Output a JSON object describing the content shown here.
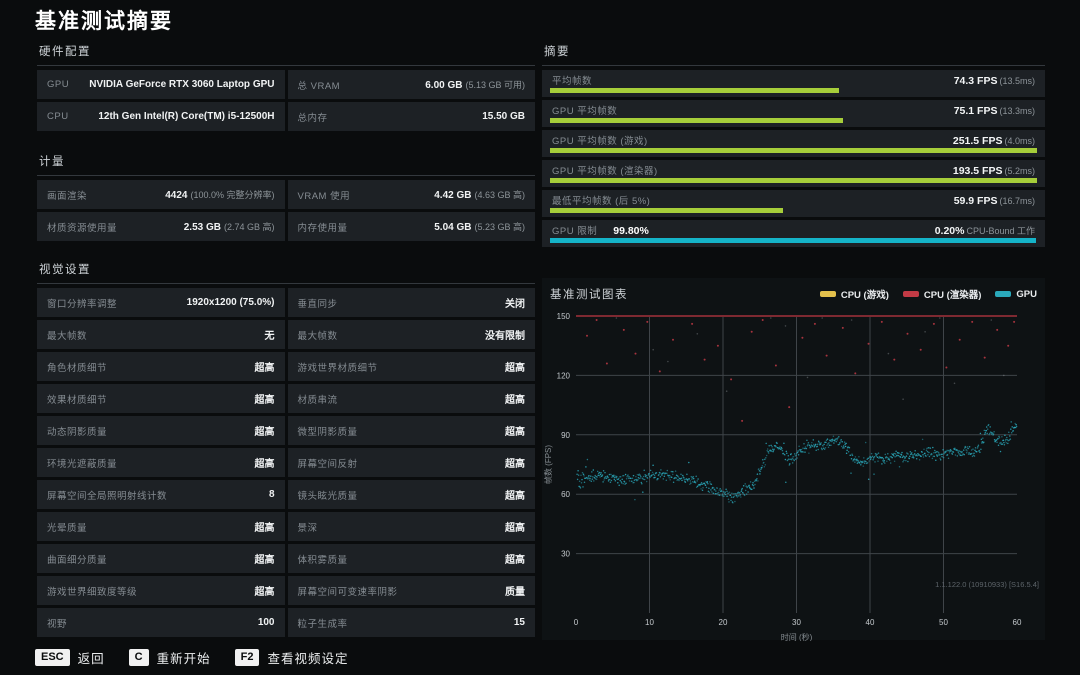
{
  "page": {
    "title": "基准测试摘要"
  },
  "hardware": {
    "header": "硬件配置",
    "rows": [
      [
        {
          "label": "GPU",
          "value": "NVIDIA GeForce RTX 3060 Laptop GPU",
          "note": ""
        },
        {
          "label": "总 VRAM",
          "value": "6.00 GB",
          "note": "(5.13 GB 可用)"
        }
      ],
      [
        {
          "label": "CPU",
          "value": "12th Gen Intel(R) Core(TM) i5-12500H",
          "note": ""
        },
        {
          "label": "总内存",
          "value": "15.50 GB",
          "note": ""
        }
      ]
    ]
  },
  "metrics": {
    "header": "计量",
    "rows": [
      [
        {
          "label": "画面渲染",
          "value": "4424",
          "note": "(100.0% 完整分辨率)"
        },
        {
          "label": "VRAM 使用",
          "value": "4.42 GB",
          "note": "(4.63 GB 高)"
        }
      ],
      [
        {
          "label": "材质资源使用量",
          "value": "2.53 GB",
          "note": "(2.74 GB 高)"
        },
        {
          "label": "内存使用量",
          "value": "5.04 GB",
          "note": "(5.23 GB 高)"
        }
      ]
    ]
  },
  "settings": {
    "header": "视觉设置",
    "rows": [
      [
        {
          "label": "窗口分辨率调整",
          "value": "1920x1200 (75.0%)"
        },
        {
          "label": "垂直同步",
          "value": "关闭"
        }
      ],
      [
        {
          "label": "最大帧数",
          "value": "无"
        },
        {
          "label": "最大帧数",
          "value": "没有限制"
        }
      ],
      [
        {
          "label": "角色材质细节",
          "value": "超高"
        },
        {
          "label": "游戏世界材质细节",
          "value": "超高"
        }
      ],
      [
        {
          "label": "效果材质细节",
          "value": "超高"
        },
        {
          "label": "材质串流",
          "value": "超高"
        }
      ],
      [
        {
          "label": "动态阴影质量",
          "value": "超高"
        },
        {
          "label": "微型阴影质量",
          "value": "超高"
        }
      ],
      [
        {
          "label": "环境光遮蔽质量",
          "value": "超高"
        },
        {
          "label": "屏幕空间反射",
          "value": "超高"
        }
      ],
      [
        {
          "label": "屏幕空间全局照明射线计数",
          "value": "8"
        },
        {
          "label": "镜头眩光质量",
          "value": "超高"
        }
      ],
      [
        {
          "label": "光晕质量",
          "value": "超高"
        },
        {
          "label": "景深",
          "value": "超高"
        }
      ],
      [
        {
          "label": "曲面细分质量",
          "value": "超高"
        },
        {
          "label": "体积雾质量",
          "value": "超高"
        }
      ],
      [
        {
          "label": "游戏世界细致度等级",
          "value": "超高"
        },
        {
          "label": "屏幕空间可变速率阴影",
          "value": "质量"
        }
      ],
      [
        {
          "label": "视野",
          "value": "100"
        },
        {
          "label": "粒子生成率",
          "value": "15"
        }
      ]
    ]
  },
  "summary": {
    "header": "摘要",
    "rows": [
      {
        "label": "平均帧数",
        "label_value": "",
        "value": "74.3 FPS",
        "note": "(13.5ms)",
        "bar_pct": 59.4,
        "bar_color": "#a6ce3a"
      },
      {
        "label": "GPU 平均帧数",
        "label_value": "",
        "value": "75.1 FPS",
        "note": "(13.3ms)",
        "bar_pct": 60.1,
        "bar_color": "#a6ce3a"
      },
      {
        "label": "GPU 平均帧数 (游戏)",
        "label_value": "",
        "value": "251.5 FPS",
        "note": "(4.0ms)",
        "bar_pct": 100,
        "bar_color": "#a6ce3a"
      },
      {
        "label": "GPU 平均帧数 (渲染器)",
        "label_value": "",
        "value": "193.5 FPS",
        "note": "(5.2ms)",
        "bar_pct": 100,
        "bar_color": "#a6ce3a"
      },
      {
        "label": "最低平均帧数 (后 5%)",
        "label_value": "",
        "value": "59.9 FPS",
        "note": "(16.7ms)",
        "bar_pct": 47.9,
        "bar_color": "#a6ce3a"
      },
      {
        "label": "GPU 限制",
        "label_value": "99.80%",
        "value": "0.20%",
        "note": "CPU-Bound 工作",
        "bar_pct": 99.8,
        "bar_color": "#15b4c8"
      }
    ]
  },
  "chart_data": {
    "type": "scatter",
    "title": "基准测试图表",
    "xlabel": "时间 (秒)",
    "ylabel": "帧数 (FPS)",
    "xlim": [
      0,
      60
    ],
    "ylim": [
      0,
      150
    ],
    "xticks": [
      0,
      10,
      20,
      30,
      40,
      50,
      60
    ],
    "yticks": [
      30,
      60,
      90,
      120,
      150
    ],
    "grid": true,
    "legend_position": "top-right",
    "legend": [
      {
        "name": "CPU (游戏)",
        "color": "#e3c04c"
      },
      {
        "name": "CPU (渲染器)",
        "color": "#c23a45"
      },
      {
        "name": "GPU",
        "color": "#2aa9bb"
      }
    ],
    "annotation": "1.1.122.0 (10910933) [S16.5.4]",
    "series": [
      {
        "name": "GPU",
        "render": "band",
        "color": "#2aa9bb",
        "jitter": 3.3,
        "points_per_sec": 15,
        "baseline": [
          [
            0,
            70
          ],
          [
            1,
            68
          ],
          [
            2,
            68.5
          ],
          [
            3,
            69.5
          ],
          [
            4,
            69
          ],
          [
            5,
            68
          ],
          [
            6,
            67
          ],
          [
            7,
            68
          ],
          [
            8,
            67
          ],
          [
            9,
            68
          ],
          [
            10,
            69
          ],
          [
            11,
            70
          ],
          [
            12,
            70
          ],
          [
            13,
            69
          ],
          [
            14,
            68.5
          ],
          [
            15,
            68
          ],
          [
            16,
            66.5
          ],
          [
            17,
            65
          ],
          [
            18,
            63.5
          ],
          [
            19,
            62
          ],
          [
            20,
            60.5
          ],
          [
            21,
            58.5
          ],
          [
            22,
            59
          ],
          [
            23,
            62
          ],
          [
            24,
            64.5
          ],
          [
            25,
            71
          ],
          [
            26,
            80
          ],
          [
            27,
            85
          ],
          [
            28,
            82
          ],
          [
            29,
            77
          ],
          [
            30,
            80
          ],
          [
            31,
            83.5
          ],
          [
            32,
            85
          ],
          [
            33,
            84
          ],
          [
            34,
            86
          ],
          [
            35,
            87
          ],
          [
            36,
            86
          ],
          [
            37,
            83
          ],
          [
            38,
            77.5
          ],
          [
            39,
            76
          ],
          [
            40,
            78
          ],
          [
            41,
            79
          ],
          [
            42,
            78
          ],
          [
            43,
            79
          ],
          [
            44,
            80
          ],
          [
            45,
            79
          ],
          [
            46,
            80
          ],
          [
            47,
            80
          ],
          [
            48,
            81
          ],
          [
            49,
            80
          ],
          [
            50,
            80
          ],
          [
            51,
            81
          ],
          [
            52,
            81
          ],
          [
            53,
            82
          ],
          [
            54,
            81
          ],
          [
            55,
            84
          ],
          [
            56,
            94
          ],
          [
            57,
            88
          ],
          [
            58,
            86
          ],
          [
            59,
            89
          ],
          [
            60,
            96
          ]
        ]
      },
      {
        "name": "CPU (渲染器)",
        "render": "points",
        "color": "#c23a45",
        "points": [
          [
            1.5,
            140
          ],
          [
            2.8,
            148
          ],
          [
            4.2,
            126
          ],
          [
            6.5,
            143
          ],
          [
            8.1,
            131
          ],
          [
            9.7,
            147
          ],
          [
            11.4,
            122
          ],
          [
            13.2,
            138
          ],
          [
            15.8,
            146
          ],
          [
            17.5,
            128
          ],
          [
            19.3,
            135
          ],
          [
            21.1,
            118
          ],
          [
            22.6,
            97
          ],
          [
            23.9,
            142
          ],
          [
            25.4,
            148
          ],
          [
            27.2,
            125
          ],
          [
            29,
            104
          ],
          [
            30.8,
            139
          ],
          [
            32.5,
            146
          ],
          [
            34.1,
            130
          ],
          [
            36.3,
            144
          ],
          [
            38,
            121
          ],
          [
            39.8,
            136
          ],
          [
            41.6,
            147
          ],
          [
            43.3,
            128
          ],
          [
            45.1,
            141
          ],
          [
            46.9,
            133
          ],
          [
            48.7,
            146
          ],
          [
            50.4,
            124
          ],
          [
            52.2,
            138
          ],
          [
            53.9,
            147
          ],
          [
            55.6,
            129
          ],
          [
            57.3,
            143
          ],
          [
            58.8,
            135
          ],
          [
            59.6,
            147
          ]
        ],
        "faint_points": [
          [
            5.5,
            149
          ],
          [
            10.5,
            133
          ],
          [
            16.5,
            141
          ],
          [
            20.5,
            112
          ],
          [
            26.5,
            149
          ],
          [
            31.5,
            119
          ],
          [
            37.5,
            148
          ],
          [
            42.5,
            131
          ],
          [
            47.5,
            142
          ],
          [
            51.5,
            116
          ],
          [
            56.5,
            148
          ],
          [
            44.5,
            108
          ],
          [
            28.5,
            145
          ],
          [
            12.5,
            127
          ],
          [
            58.2,
            120
          ],
          [
            7.5,
            150
          ],
          [
            33.5,
            149
          ],
          [
            49.5,
            149
          ]
        ]
      },
      {
        "name": "CPU (游戏)",
        "render": "hline",
        "color": "#7e2931",
        "y": 150,
        "note": "clipped at chart max"
      }
    ]
  },
  "footer": {
    "hints": [
      {
        "key": "ESC",
        "label": "返回"
      },
      {
        "key": "C",
        "label": "重新开始"
      },
      {
        "key": "F2",
        "label": "查看视频设定"
      }
    ]
  },
  "colors": {
    "bar_green": "#a6ce3a",
    "bar_cyan": "#15b4c8",
    "cell_bg": "#1d2125",
    "grid_line": "#3f4449"
  }
}
